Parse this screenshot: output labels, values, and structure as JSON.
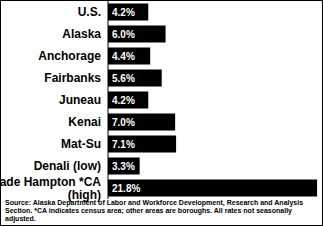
{
  "chart_data": {
    "type": "bar",
    "orientation": "horizontal",
    "categories": [
      "U.S.",
      "Alaska",
      "Anchorage",
      "Fairbanks",
      "Juneau",
      "Kenai",
      "Mat-Su",
      "Denali (low)",
      "Wade Hampton *CA\n(high)"
    ],
    "values": [
      4.2,
      6.0,
      4.4,
      5.6,
      4.2,
      7.0,
      7.1,
      3.3,
      21.8
    ],
    "value_labels": [
      "4.2%",
      "6.0%",
      "4.4%",
      "5.6%",
      "4.2%",
      "7.0%",
      "7.1%",
      "3.3%",
      "21.8%"
    ],
    "color": "#000000",
    "xlim": [
      0,
      22
    ],
    "data_labels": true,
    "tick_labels": "y",
    "grid": false,
    "annotations": [
      "Source: Alaska Department of Labor and Workforce Development, Research and Analysis Section. *CA indicates census area; other areas are boroughs. All rates not seasonally adjusted."
    ]
  }
}
